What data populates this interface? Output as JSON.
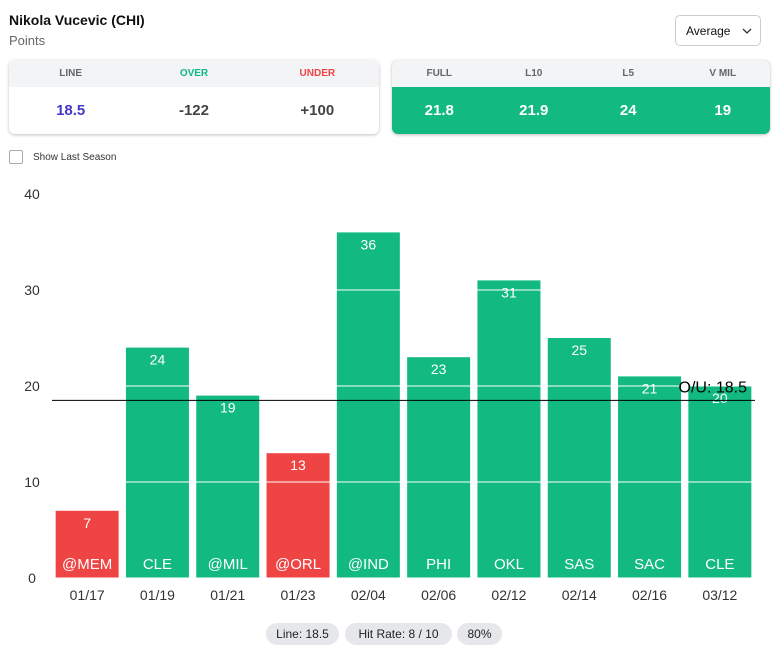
{
  "header": {
    "player": "Nikola Vucevic (CHI)",
    "stat": "Points",
    "dropdown": "Average"
  },
  "line_table": {
    "headers": [
      "LINE",
      "OVER",
      "UNDER"
    ],
    "values": [
      "18.5",
      "-122",
      "+100"
    ]
  },
  "avg_table": {
    "headers": [
      "FULL",
      "L10",
      "L5",
      "V MIL"
    ],
    "values": [
      "21.8",
      "21.9",
      "24",
      "19"
    ]
  },
  "checkbox": "Show Last Season",
  "chart_data": {
    "type": "bar",
    "categories": [
      "01/17",
      "01/19",
      "01/21",
      "01/23",
      "02/04",
      "02/06",
      "02/12",
      "02/14",
      "02/16",
      "03/12"
    ],
    "opponents": [
      "@MEM",
      "CLE",
      "@MIL",
      "@ORL",
      "@IND",
      "PHI",
      "OKL",
      "SAS",
      "SAC",
      "CLE"
    ],
    "values": [
      7,
      24,
      19,
      13,
      36,
      23,
      31,
      25,
      21,
      20
    ],
    "over_color": "#12b981",
    "under_color": "#ef4444",
    "reference_line": {
      "value": 18.5,
      "label": "O/U: 18.5"
    },
    "ylim": [
      0,
      40
    ],
    "yticks": [
      0,
      10,
      20,
      30,
      40
    ],
    "grid": true
  },
  "footer": {
    "line": "Line: 18.5",
    "hit_rate": "Hit Rate: 8 / 10",
    "pct": "80%"
  }
}
